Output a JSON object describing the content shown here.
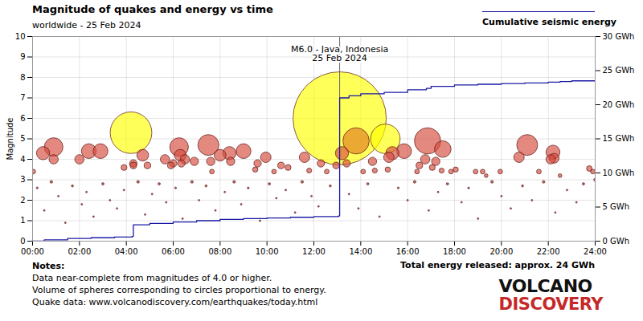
{
  "chart_data": {
    "type": "scatter",
    "title": "Magnitude of quakes and energy vs time",
    "subtitle": "worldwide - 25 Feb 2024",
    "y_label": "Magnitude",
    "xlim": [
      0,
      24
    ],
    "xticks": [
      {
        "value": 0,
        "label": "00:00"
      },
      {
        "value": 2,
        "label": "02:00"
      },
      {
        "value": 4,
        "label": "04:00"
      },
      {
        "value": 6,
        "label": "06:00"
      },
      {
        "value": 8,
        "label": "08:00"
      },
      {
        "value": 10,
        "label": "10:00"
      },
      {
        "value": 12,
        "label": "12:00"
      },
      {
        "value": 14,
        "label": "14:00"
      },
      {
        "value": 16,
        "label": "16:00"
      },
      {
        "value": 18,
        "label": "18:00"
      },
      {
        "value": 20,
        "label": "20:00"
      },
      {
        "value": 22,
        "label": "22:00"
      },
      {
        "value": 24,
        "label": "24:00"
      }
    ],
    "ylim": [
      0,
      10
    ],
    "yticks": [
      0,
      1,
      2,
      3,
      4,
      5,
      6,
      7,
      8,
      9,
      10
    ],
    "y2lim": [
      0,
      30
    ],
    "y2ticks": [
      {
        "value": 0,
        "label": "0 GWh"
      },
      {
        "value": 5,
        "label": "5 GWh"
      },
      {
        "value": 10,
        "label": "10 GWh"
      },
      {
        "value": 15,
        "label": "15 GWh"
      },
      {
        "value": 20,
        "label": "20 GWh"
      },
      {
        "value": 25,
        "label": "25 GWh"
      },
      {
        "value": 30,
        "label": "30 GWh"
      }
    ],
    "grid": true,
    "legend": "top right",
    "series": [
      {
        "type": "scatter",
        "color": "#ffff00",
        "x": [
          4.2,
          13.1,
          15.05
        ],
        "values": [
          5.3,
          6.0,
          5.0
        ]
      },
      {
        "type": "scatter",
        "color": "#e07b20",
        "x": [
          13.8
        ],
        "values": [
          4.9
        ]
      },
      {
        "type": "scatter",
        "color": "#d64a3c",
        "x": [
          0.03,
          0.45,
          0.9,
          0.9,
          2.0,
          2.4,
          2.9,
          3.9,
          4.3,
          4.3,
          4.7,
          4.9,
          5.65,
          5.9,
          6.0,
          6.25,
          6.3,
          6.35,
          6.5,
          6.9,
          7.5,
          7.6,
          7.65,
          8.0,
          8.4,
          8.45,
          9.0,
          9.5,
          9.6,
          9.95,
          10.3,
          10.6,
          10.9,
          11.6,
          11.8,
          12.3,
          12.55,
          12.95,
          13.2,
          13.4,
          14.1,
          14.5,
          14.6,
          15.15,
          15.2,
          15.35,
          15.85,
          16.4,
          16.5,
          16.75,
          16.85,
          17.05,
          17.2,
          17.45,
          17.5,
          17.85,
          18.05,
          18.9,
          19.2,
          19.35,
          19.95,
          20.75,
          21.1,
          21.6,
          22.1,
          22.2,
          22.25,
          22.5,
          23.75,
          23.9,
          24.0
        ],
        "values": [
          3.4,
          4.3,
          4.6,
          4.0,
          4.0,
          4.4,
          4.4,
          3.6,
          3.8,
          3.7,
          4.2,
          3.7,
          4.0,
          3.7,
          3.8,
          4.6,
          4.2,
          3.8,
          4.0,
          3.9,
          4.7,
          3.9,
          3.4,
          4.2,
          4.3,
          3.9,
          4.4,
          3.5,
          3.8,
          4.1,
          3.4,
          3.7,
          3.6,
          4.1,
          3.45,
          3.8,
          3.4,
          3.7,
          4.3,
          3.8,
          3.4,
          3.9,
          3.45,
          3.5,
          4.1,
          4.3,
          4.4,
          3.4,
          3.7,
          4.0,
          4.9,
          3.6,
          3.9,
          3.45,
          4.5,
          3.4,
          3.5,
          3.4,
          3.4,
          3.2,
          3.4,
          4.1,
          4.7,
          3.4,
          4.0,
          4.35,
          4.05,
          3.2,
          3.55,
          3.4,
          3.0
        ]
      },
      {
        "type": "scatter",
        "color": "#a0302a",
        "x": [
          0.2,
          0.5,
          0.8,
          1.1,
          1.4,
          1.7,
          2.1,
          2.3,
          2.6,
          3.0,
          3.3,
          3.6,
          3.9,
          4.5,
          4.8,
          5.1,
          5.4,
          5.7,
          6.1,
          6.4,
          6.8,
          7.1,
          7.4,
          7.8,
          8.2,
          8.6,
          8.9,
          9.2,
          9.7,
          10.1,
          10.4,
          10.8,
          11.2,
          11.5,
          11.9,
          12.2,
          12.7,
          13.5,
          13.9,
          14.3,
          14.8,
          15.6,
          16.0,
          16.3,
          16.9,
          17.3,
          17.7,
          18.3,
          18.6,
          19.0,
          19.6,
          20.0,
          20.4,
          20.9,
          21.3,
          21.8,
          22.3,
          22.8,
          23.2,
          23.5
        ],
        "values": [
          2.6,
          1.5,
          2.9,
          2.2,
          0.9,
          2.7,
          1.8,
          2.4,
          1.2,
          2.8,
          2.0,
          1.6,
          2.5,
          2.9,
          1.3,
          2.3,
          2.8,
          1.9,
          2.6,
          1.1,
          2.9,
          2.0,
          2.7,
          1.5,
          2.4,
          2.9,
          1.8,
          2.6,
          1.0,
          2.8,
          2.1,
          2.5,
          1.4,
          2.9,
          2.2,
          1.7,
          2.7,
          2.3,
          1.6,
          2.8,
          1.2,
          2.6,
          2.0,
          2.9,
          1.5,
          2.4,
          2.8,
          1.9,
          2.6,
          1.1,
          2.9,
          2.2,
          1.6,
          2.7,
          2.0,
          2.9,
          1.4,
          2.5,
          1.9,
          2.8
        ]
      },
      {
        "name": "Cumulative seismic energy",
        "type": "line",
        "axis": "y2",
        "color": "#1a1aa6",
        "x": [
          0,
          0.5,
          1.5,
          2.5,
          3.5,
          4.25,
          4.3,
          5,
          6,
          7,
          8,
          9,
          10,
          11,
          12,
          13.05,
          13.1,
          13.5,
          14,
          15,
          16,
          16.8,
          17,
          18,
          19,
          20,
          21,
          22,
          22.5,
          23,
          24
        ],
        "values": [
          0,
          0.2,
          0.4,
          0.5,
          0.6,
          0.7,
          2.4,
          2.6,
          2.8,
          3.0,
          3.2,
          3.3,
          3.4,
          3.5,
          3.6,
          3.7,
          21.0,
          21.3,
          21.6,
          21.8,
          22.2,
          22.4,
          22.7,
          22.9,
          23.0,
          23.1,
          23.2,
          23.3,
          23.4,
          23.5,
          23.5
        ]
      }
    ],
    "annotations": [
      {
        "x": 13.1,
        "y": 6.0,
        "text": [
          "M6.0 - Java, Indonesia",
          "25 Feb 2024"
        ]
      }
    ],
    "notes": {
      "heading": "Notes:",
      "lines": [
        "Data near-complete from magnitudes of 4.0 or higher.",
        "Volume of spheres corresponding to circles proportional to energy.",
        "Quake data: www.volcanodiscovery.com/earthquakes/today.html"
      ]
    },
    "total_energy": "Total energy released: approx. 24 GWh",
    "logo": [
      "VOLCANO",
      "DISCOVERY"
    ]
  }
}
